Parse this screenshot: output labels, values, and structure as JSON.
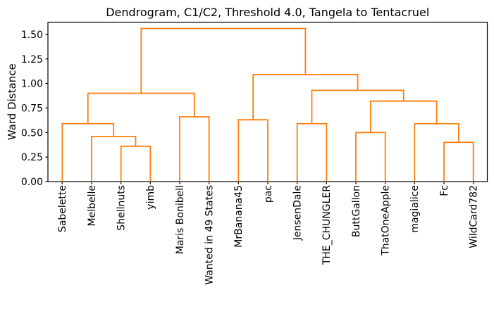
{
  "chart_data": {
    "type": "dendrogram",
    "title": "Dendrogram, C1/C2, Threshold 4.0, Tangela to Tentacruel",
    "ylabel": "Ward Distance",
    "xlabel": "",
    "leaves": [
      "Sabelette",
      "Melbelle",
      "Shellnuts",
      "yimb",
      "Maris Bonibell",
      "Wanted in 49 States",
      "MrBanana45",
      "pac",
      "JensenDale",
      "THE_CHUNGLER",
      "ButtGallon",
      "ThatOneApple",
      "magialice",
      "Fc",
      "WildCard782"
    ],
    "merges": [
      {
        "a": "L2",
        "b": "L3",
        "h": 0.36
      },
      {
        "a": "L1",
        "b": "M0",
        "h": 0.46
      },
      {
        "a": "L0",
        "b": "M1",
        "h": 0.59
      },
      {
        "a": "L4",
        "b": "L5",
        "h": 0.66
      },
      {
        "a": "M2",
        "b": "M3",
        "h": 0.9
      },
      {
        "a": "L6",
        "b": "L7",
        "h": 0.63
      },
      {
        "a": "L8",
        "b": "L9",
        "h": 0.59
      },
      {
        "a": "L10",
        "b": "L11",
        "h": 0.5
      },
      {
        "a": "L13",
        "b": "L14",
        "h": 0.4
      },
      {
        "a": "L12",
        "b": "M8",
        "h": 0.59
      },
      {
        "a": "M7",
        "b": "M9",
        "h": 0.82
      },
      {
        "a": "M6",
        "b": "M10",
        "h": 0.93
      },
      {
        "a": "M5",
        "b": "M11",
        "h": 1.09
      },
      {
        "a": "M4",
        "b": "M12",
        "h": 1.56
      }
    ],
    "yticks": [
      "0.00",
      "0.25",
      "0.50",
      "0.75",
      "1.00",
      "1.25",
      "1.50"
    ],
    "ylim": [
      0,
      1.62
    ],
    "grid": false,
    "legend": null,
    "link_color": "#ff7f0e",
    "axis_color": "#000000",
    "background": "#ffffff"
  }
}
